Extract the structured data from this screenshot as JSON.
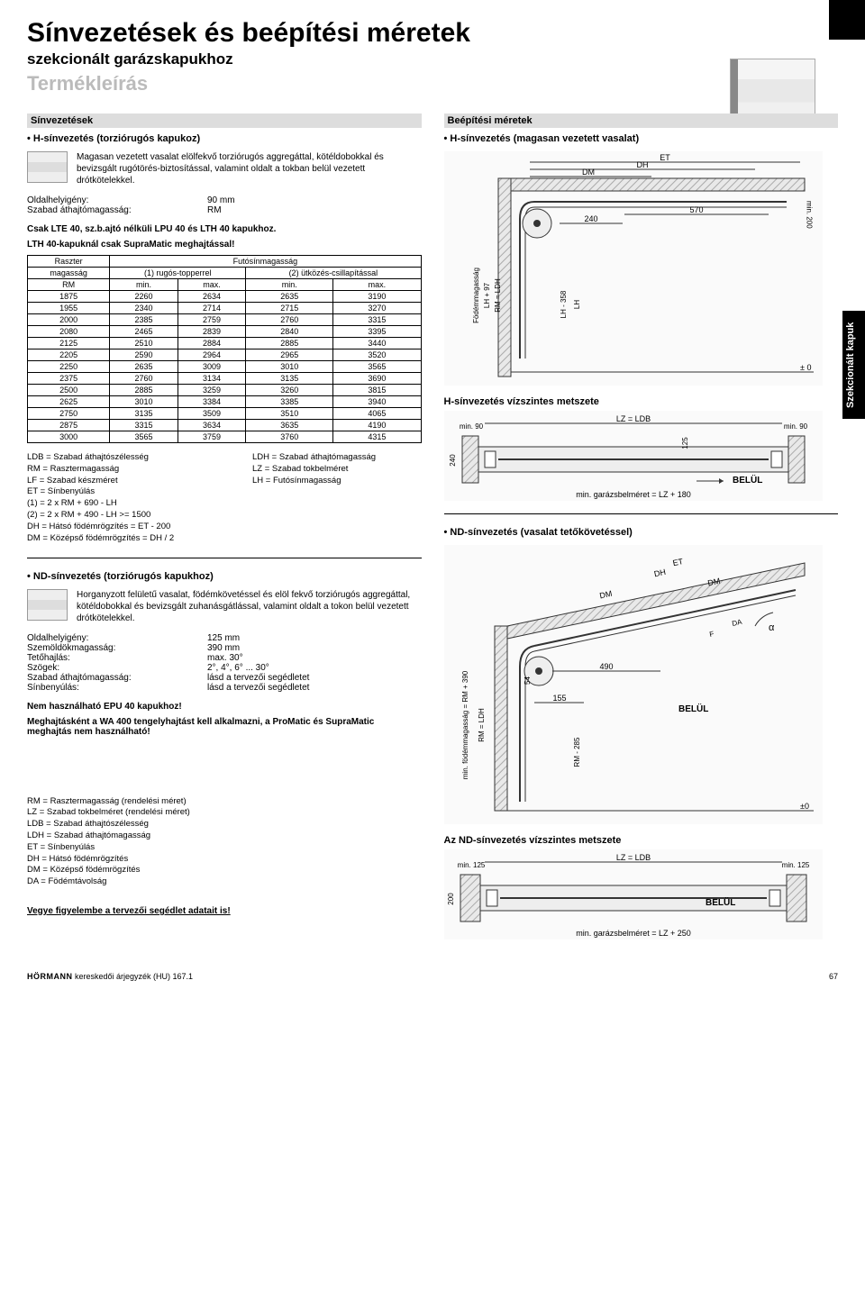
{
  "header": {
    "title": "Sínvezetések és beépítési méretek",
    "subtitle": "szekcionált garázskapukhoz",
    "desc": "Termékleírás"
  },
  "side_tab": "Szekcionált kapuk",
  "left": {
    "section": "Sínvezetések",
    "h_title": "H-sínvezetés (torziórugós kapukoz)",
    "h_para": "Magasan vezetett vasalat elölfekvő torziórugós aggregáttal, kötéldobokkal és bevizsgált rugótörés-biztosítással, valamint oldalt a tokban belül vezetett drótkötelekkel.",
    "spec1_label": "Oldalhelyigény:",
    "spec1_val": "90 mm",
    "spec2_label": "Szabad áthajtómagasság:",
    "spec2_val": "RM",
    "note1": "Csak LTE 40, sz.b.ajtó nélküli LPU 40 és LTH 40 kapukhoz.",
    "note2": "LTH 40-kapuknál csak SupraMatic meghajtással!",
    "table": {
      "header1": "Raszter",
      "header2": "Futósínmagasság",
      "header3": "magasság",
      "header4": "(1) rugós-topperrel",
      "header5": "(2) ütközés-csillapítással",
      "header_rm": "RM",
      "header_min1": "min.",
      "header_max1": "max.",
      "header_min2": "min.",
      "header_max2": "max.",
      "rows": [
        [
          "1875",
          "2260",
          "2634",
          "2635",
          "3190"
        ],
        [
          "1955",
          "2340",
          "2714",
          "2715",
          "3270"
        ],
        [
          "2000",
          "2385",
          "2759",
          "2760",
          "3315"
        ],
        [
          "2080",
          "2465",
          "2839",
          "2840",
          "3395"
        ],
        [
          "2125",
          "2510",
          "2884",
          "2885",
          "3440"
        ],
        [
          "2205",
          "2590",
          "2964",
          "2965",
          "3520"
        ],
        [
          "2250",
          "2635",
          "3009",
          "3010",
          "3565"
        ],
        [
          "2375",
          "2760",
          "3134",
          "3135",
          "3690"
        ],
        [
          "2500",
          "2885",
          "3259",
          "3260",
          "3815"
        ],
        [
          "2625",
          "3010",
          "3384",
          "3385",
          "3940"
        ],
        [
          "2750",
          "3135",
          "3509",
          "3510",
          "4065"
        ],
        [
          "2875",
          "3315",
          "3634",
          "3635",
          "4190"
        ],
        [
          "3000",
          "3565",
          "3759",
          "3760",
          "4315"
        ]
      ]
    },
    "legend1": [
      [
        "LDB",
        "= Szabad áthajtószélesség",
        "LDH",
        "= Szabad áthajtómagasság"
      ],
      [
        "RM",
        "= Rasztermagasság",
        "LZ",
        "= Szabad tokbelméret"
      ],
      [
        "LF",
        "= Szabad készméret",
        "LH",
        "= Futósínmagasság"
      ],
      [
        "ET",
        "= Sínbenyúlás",
        "",
        ""
      ],
      [
        "(1)",
        "= 2 x RM + 690 - LH",
        "",
        ""
      ],
      [
        "(2)",
        "= 2 x RM + 490 - LH >= 1500",
        "",
        ""
      ],
      [
        "DH",
        "= Hátsó födémrögzítés  = ET - 200",
        "",
        ""
      ],
      [
        "DM",
        "= Középső födémrögzítés  = DH / 2",
        "",
        ""
      ]
    ],
    "nd_title": "ND-sínvezetés (torziórugós kapukhoz)",
    "nd_para": "Horganyzott felületű vasalat, födémkövetéssel és elöl fekvő torziórugós aggregáttal, kötéldobokkal és bevizsgált zuhanásgátlással, valamint oldalt a tokon belül vezetett drótkötelekkel.",
    "nd_specs": [
      [
        "Oldalhelyigény:",
        "125 mm"
      ],
      [
        "Szemöldökmagasság:",
        "390 mm"
      ],
      [
        "Tetőhajlás:",
        "max. 30°"
      ],
      [
        "Szögek:",
        "2°, 4°, 6° ... 30°"
      ],
      [
        "Szabad áthajtómagasság:",
        "lásd a tervezői segédletet"
      ],
      [
        "Sínbenyúlás:",
        "lásd a tervezői segédletet"
      ]
    ],
    "nd_note1": "Nem használható EPU 40 kapukhoz!",
    "nd_note2": "Meghajtásként a WA 400 tengelyhajtást kell alkalmazni, a ProMatic és SupraMatic meghajtás nem használható!",
    "legend2": [
      [
        "RM",
        "= Rasztermagasság (rendelési méret)"
      ],
      [
        "LZ",
        "= Szabad tokbelméret (rendelési méret)"
      ],
      [
        "LDB",
        "= Szabad áthajtószélesség"
      ],
      [
        "LDH",
        "= Szabad áthajtómagasság"
      ],
      [
        "ET",
        "= Sínbenyúlás"
      ],
      [
        "DH",
        "= Hátsó födémrögzítés"
      ],
      [
        "DM",
        "= Középső födémrögzítés"
      ],
      [
        "DA",
        "= Födémtávolság"
      ]
    ],
    "final_note": "Vegye figyelembe a tervezői segédlet adatait is!"
  },
  "right": {
    "section": "Beépítési méretek",
    "h_title": "H-sínvezetés (magasan vezetett vasalat)",
    "hsect_title": "H-sínvezetés vízszintes metszete",
    "nd_title": "ND-sínvezetés (vasalat tetőkövetéssel)",
    "ndsect_title": "Az ND-sínvezetés vízszintes metszete",
    "diag1": {
      "ET": "ET",
      "DH": "DH",
      "DM": "DM",
      "min200": "min.\n200",
      "v570": "570",
      "v240": "240",
      "fod": "Födémmagasság",
      "lh97": "LH + 97",
      "rmldhv": "RM = LDH",
      "lh358": "LH - 358",
      "LH": "LH",
      "pm0": "± 0"
    },
    "diag2": {
      "min90l": "min.\n90",
      "min90r": "min.\n90",
      "lzldb": "LZ = LDB",
      "v125": "125",
      "v240": "240",
      "belul": "BELÜL",
      "note": "min. garázsbelméret = LZ + 180"
    },
    "diag3": {
      "ET": "ET",
      "DH": "DH",
      "DM": "DM",
      "DM2": "DM",
      "alpha": "α",
      "DA": "DA",
      "F": "F",
      "yaxis": "min. födémmagasság = RM + 390",
      "rmldhv": "RM = LDH",
      "v54": "54",
      "v490": "490",
      "v155": "155",
      "rm285": "RM - 285",
      "belul": "BELÜL",
      "pm0": "±0"
    },
    "diag4": {
      "min125l": "min.\n125",
      "min125r": "min.\n125",
      "lzldb": "LZ = LDB",
      "v200": "200",
      "belul": "BELÜL",
      "note": "min. garázsbelméret = LZ + 250"
    }
  },
  "footer": {
    "left_brand": "HÖRMANN",
    "left_rest": " kereskedői árjegyzék (HU) 167.1",
    "page": "67"
  },
  "colors": {
    "hatch": "#bfbfbf",
    "line": "#333333",
    "fill_light": "#e9e9e9"
  }
}
